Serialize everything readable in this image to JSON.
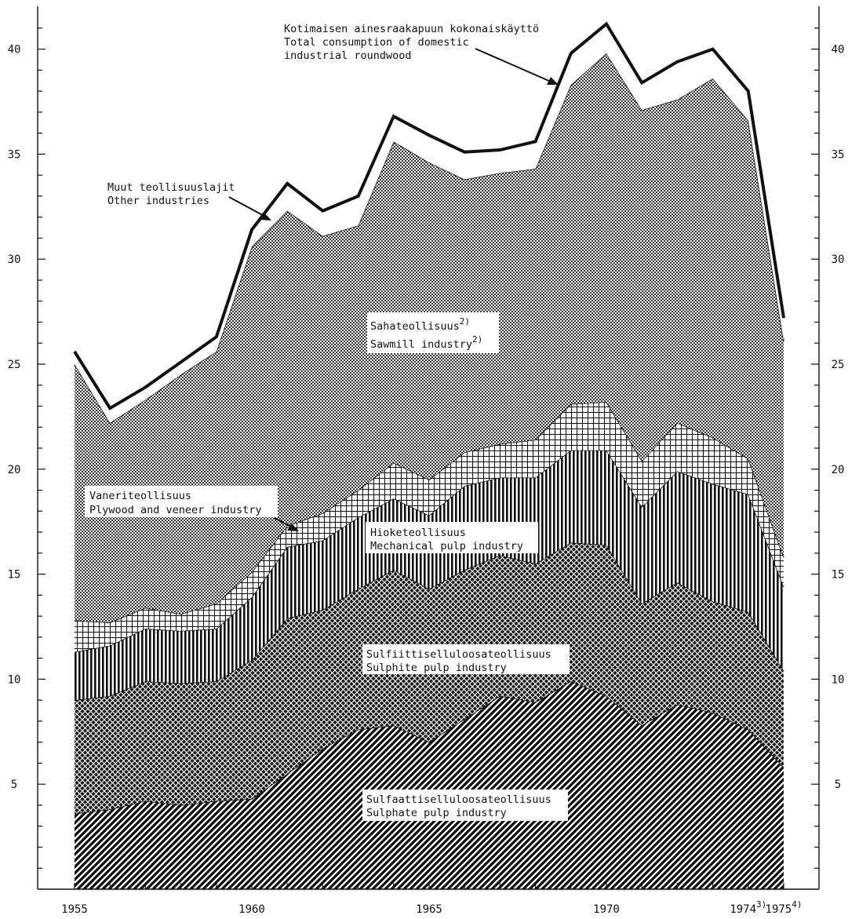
{
  "chart_data": {
    "type": "area",
    "x": [
      1955,
      1956,
      1957,
      1958,
      1959,
      1960,
      1961,
      1962,
      1963,
      1964,
      1965,
      1966,
      1967,
      1968,
      1969,
      1970,
      1971,
      1972,
      1973,
      1974,
      1975
    ],
    "x_tick_labels": [
      "1955",
      "1960",
      "1965",
      "1970",
      "1974",
      "1975"
    ],
    "x_tick_sups": [
      "",
      "",
      "",
      "",
      "3)",
      "4)"
    ],
    "y_ticks": [
      5,
      10,
      15,
      20,
      25,
      30,
      35,
      40
    ],
    "ylim": [
      0,
      42
    ],
    "stacked": true,
    "series": [
      {
        "name": "Sulfaattiselluloosateollisuus / Sulphate pulp industry",
        "pattern": "diagonal-hatch",
        "values": [
          3.6,
          3.8,
          4.2,
          4.0,
          4.2,
          4.3,
          5.5,
          6.7,
          7.6,
          7.8,
          7.0,
          8.1,
          9.2,
          8.9,
          9.9,
          9.2,
          7.8,
          8.8,
          8.4,
          7.6,
          5.8
        ]
      },
      {
        "name": "Sulfiittiselluloosateollisuus / Sulphite pulp industry",
        "pattern": "dense-crosshatch",
        "values": [
          9.0,
          9.2,
          9.9,
          9.8,
          9.9,
          10.9,
          12.9,
          13.3,
          14.3,
          15.2,
          14.3,
          15.2,
          15.9,
          15.5,
          16.5,
          16.4,
          13.6,
          14.6,
          13.7,
          13.2,
          10.4
        ]
      },
      {
        "name": "Hioketeollisuus / Mechanical pulp industry",
        "pattern": "vertical-lines",
        "values": [
          11.3,
          11.6,
          12.4,
          12.3,
          12.4,
          13.9,
          16.3,
          16.6,
          17.7,
          18.6,
          17.8,
          19.2,
          19.6,
          19.6,
          20.9,
          20.9,
          18.2,
          19.9,
          19.3,
          18.8,
          14.4
        ]
      },
      {
        "name": "Vaneriteollisuus / Plywood and veneer industry",
        "pattern": "grid",
        "values": [
          12.8,
          12.7,
          13.4,
          13.1,
          13.6,
          15.1,
          17.3,
          17.9,
          19.0,
          20.3,
          19.5,
          20.8,
          21.2,
          21.4,
          23.1,
          23.2,
          20.4,
          22.2,
          21.5,
          20.5,
          15.8
        ]
      },
      {
        "name": "Sahateollisuus / Sawmill industry",
        "pattern": "dots",
        "values": [
          25.0,
          22.2,
          23.3,
          24.5,
          25.6,
          30.6,
          32.3,
          31.1,
          31.6,
          35.6,
          34.6,
          33.8,
          34.1,
          34.3,
          38.3,
          39.8,
          37.1,
          37.6,
          38.6,
          36.6,
          26.1
        ]
      },
      {
        "name": "Muut teollisuuslajit / Other industries",
        "pattern": "none",
        "values": [
          25.6,
          22.9,
          23.9,
          25.1,
          26.3,
          31.4,
          33.6,
          32.3,
          33.0,
          36.8,
          35.9,
          35.1,
          35.2,
          35.6,
          39.8,
          41.2,
          38.4,
          39.4,
          40.0,
          38.0,
          27.2
        ]
      }
    ],
    "total_line": {
      "name": "Kotimaisen ainesraakapuun kokonaiskäyttö / Total consumption of domestic industrial roundwood",
      "values": [
        25.6,
        22.9,
        23.9,
        25.1,
        26.3,
        31.4,
        33.6,
        32.3,
        33.0,
        36.8,
        35.9,
        35.1,
        35.2,
        35.6,
        39.8,
        41.2,
        38.4,
        39.4,
        40.0,
        38.0,
        27.2
      ]
    },
    "annotations": {
      "total": [
        "Kotimaisen ainesraakapuun kokonaiskäyttö",
        "Total consumption of domestic",
        "industrial roundwood"
      ],
      "other": [
        "Muut teollisuuslajit",
        "Other industries"
      ],
      "sawmill": [
        "Sahateollisuus",
        "Sawmill industry"
      ],
      "sawmill_sup": "2)",
      "plywood": [
        "Vaneriteollisuus",
        "Plywood and veneer industry"
      ],
      "mechanical": [
        "Hioketeollisuus",
        "Mechanical pulp industry"
      ],
      "sulphite": [
        "Sulfiittiselluloosateollisuus",
        "Sulphite pulp industry"
      ],
      "sulphate": [
        "Sulfaattiselluloosateollisuus",
        "Sulphate pulp industry"
      ]
    },
    "colors": {
      "ink": "#111111",
      "paper": "#ffffff"
    }
  }
}
